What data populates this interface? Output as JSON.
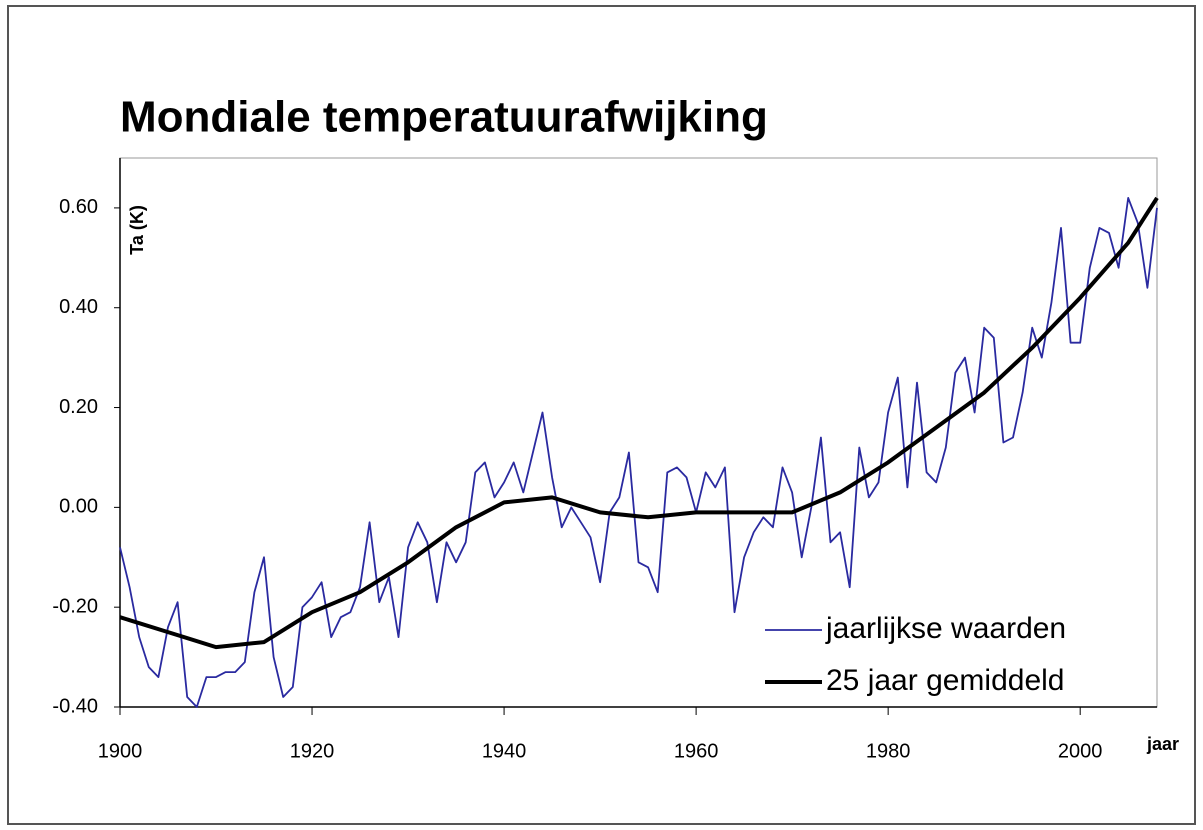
{
  "chart_data": {
    "type": "line",
    "title": "Mondiale temperatuurafwijking",
    "ylabel": "Ta (K)",
    "xlabel": "jaar",
    "xlim": [
      1900,
      2008
    ],
    "xticks": [
      1900,
      1920,
      1940,
      1960,
      1980,
      2000
    ],
    "ylim": [
      -0.4,
      0.7
    ],
    "yticks": [
      {
        "value": -0.4,
        "label": "-0.40"
      },
      {
        "value": -0.2,
        "label": "-0.20"
      },
      {
        "value": 0,
        "label": "0.00"
      },
      {
        "value": 0.2,
        "label": "0.20"
      },
      {
        "value": 0.4,
        "label": "0.40"
      },
      {
        "value": 0.6,
        "label": "0.60"
      }
    ],
    "legend": "lower right",
    "series": [
      {
        "name": "jaarlijkse waarden",
        "color": "#2a2aa0",
        "x": [
          1900,
          1901,
          1902,
          1903,
          1904,
          1905,
          1906,
          1907,
          1908,
          1909,
          1910,
          1911,
          1912,
          1913,
          1914,
          1915,
          1916,
          1917,
          1918,
          1919,
          1920,
          1921,
          1922,
          1923,
          1924,
          1925,
          1926,
          1927,
          1928,
          1929,
          1930,
          1931,
          1932,
          1933,
          1934,
          1935,
          1936,
          1937,
          1938,
          1939,
          1940,
          1941,
          1942,
          1943,
          1944,
          1945,
          1946,
          1947,
          1948,
          1949,
          1950,
          1951,
          1952,
          1953,
          1954,
          1955,
          1956,
          1957,
          1958,
          1959,
          1960,
          1961,
          1962,
          1963,
          1964,
          1965,
          1966,
          1967,
          1968,
          1969,
          1970,
          1971,
          1972,
          1973,
          1974,
          1975,
          1976,
          1977,
          1978,
          1979,
          1980,
          1981,
          1982,
          1983,
          1984,
          1985,
          1986,
          1987,
          1988,
          1989,
          1990,
          1991,
          1992,
          1993,
          1994,
          1995,
          1996,
          1997,
          1998,
          1999,
          2000,
          2001,
          2002,
          2003,
          2004,
          2005,
          2006,
          2007,
          2008
        ],
        "values": [
          -0.08,
          -0.16,
          -0.26,
          -0.32,
          -0.34,
          -0.24,
          -0.19,
          -0.38,
          -0.4,
          -0.34,
          -0.34,
          -0.33,
          -0.33,
          -0.31,
          -0.17,
          -0.1,
          -0.3,
          -0.38,
          -0.36,
          -0.2,
          -0.18,
          -0.15,
          -0.26,
          -0.22,
          -0.21,
          -0.16,
          -0.03,
          -0.19,
          -0.14,
          -0.26,
          -0.08,
          -0.03,
          -0.07,
          -0.19,
          -0.07,
          -0.11,
          -0.07,
          0.07,
          0.09,
          0.02,
          0.05,
          0.09,
          0.03,
          0.11,
          0.19,
          0.06,
          -0.04,
          0.0,
          -0.03,
          -0.06,
          -0.15,
          -0.01,
          0.02,
          0.11,
          -0.11,
          -0.12,
          -0.17,
          0.07,
          0.08,
          0.06,
          -0.01,
          0.07,
          0.04,
          0.08,
          -0.21,
          -0.1,
          -0.05,
          -0.02,
          -0.04,
          0.08,
          0.03,
          -0.1,
          0.0,
          0.14,
          -0.07,
          -0.05,
          -0.16,
          0.12,
          0.02,
          0.05,
          0.19,
          0.26,
          0.04,
          0.25,
          0.07,
          0.05,
          0.12,
          0.27,
          0.3,
          0.19,
          0.36,
          0.34,
          0.13,
          0.14,
          0.23,
          0.36,
          0.3,
          0.41,
          0.56,
          0.33,
          0.33,
          0.48,
          0.56,
          0.55,
          0.48,
          0.62,
          0.57,
          0.44,
          0.6
        ]
      },
      {
        "name": "25 jaar gemiddeld",
        "color": "#000000",
        "x": [
          1900,
          1905,
          1910,
          1915,
          1920,
          1925,
          1930,
          1935,
          1940,
          1945,
          1950,
          1955,
          1960,
          1965,
          1970,
          1975,
          1980,
          1985,
          1990,
          1995,
          2000,
          2005,
          2008
        ],
        "values": [
          -0.22,
          -0.25,
          -0.28,
          -0.27,
          -0.21,
          -0.17,
          -0.11,
          -0.04,
          0.01,
          0.02,
          -0.01,
          -0.02,
          -0.01,
          -0.01,
          -0.01,
          0.03,
          0.09,
          0.16,
          0.23,
          0.32,
          0.42,
          0.53,
          0.62
        ]
      }
    ]
  }
}
